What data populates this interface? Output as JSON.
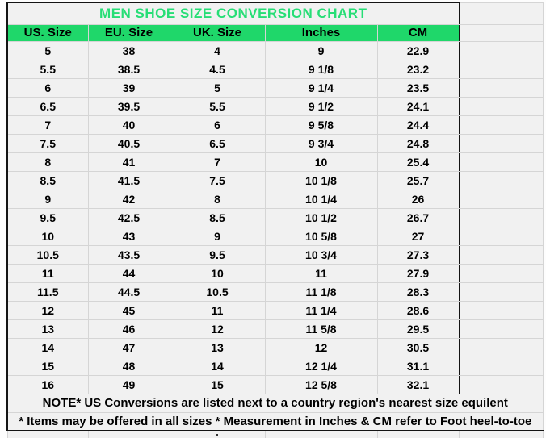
{
  "title": "MEN SHOE SIZE CONVERSION CHART",
  "colors": {
    "header_green": "#1fd76a",
    "title_green": "#27de76",
    "cell_background": "#f1f1f1",
    "gridline": "#d5d5d5",
    "border_dark": "#141414"
  },
  "chart_data": {
    "type": "table",
    "title": "MEN SHOE SIZE CONVERSION CHART",
    "columns": [
      "US. Size",
      "EU. Size",
      "UK. Size",
      "Inches",
      "CM"
    ],
    "rows": [
      [
        "5",
        "38",
        "4",
        "9",
        "22.9"
      ],
      [
        "5.5",
        "38.5",
        "4.5",
        "9 1/8",
        "23.2"
      ],
      [
        "6",
        "39",
        "5",
        "9 1/4",
        "23.5"
      ],
      [
        "6.5",
        "39.5",
        "5.5",
        "9 1/2",
        "24.1"
      ],
      [
        "7",
        "40",
        "6",
        "9 5/8",
        "24.4"
      ],
      [
        "7.5",
        "40.5",
        "6.5",
        "9 3/4",
        "24.8"
      ],
      [
        "8",
        "41",
        "7",
        "10",
        "25.4"
      ],
      [
        "8.5",
        "41.5",
        "7.5",
        "10 1/8",
        "25.7"
      ],
      [
        "9",
        "42",
        "8",
        "10 1/4",
        "26"
      ],
      [
        "9.5",
        "42.5",
        "8.5",
        "10 1/2",
        "26.7"
      ],
      [
        "10",
        "43",
        "9",
        "10 5/8",
        "27"
      ],
      [
        "10.5",
        "43.5",
        "9.5",
        "10 3/4",
        "27.3"
      ],
      [
        "11",
        "44",
        "10",
        "11",
        "27.9"
      ],
      [
        "11.5",
        "44.5",
        "10.5",
        "11 1/8",
        "28.3"
      ],
      [
        "12",
        "45",
        "11",
        "11 1/4",
        "28.6"
      ],
      [
        "13",
        "46",
        "12",
        "11 5/8",
        "29.5"
      ],
      [
        "14",
        "47",
        "13",
        "12",
        "30.5"
      ],
      [
        "15",
        "48",
        "14",
        "12 1/4",
        "31.1"
      ],
      [
        "16",
        "49",
        "15",
        "12 5/8",
        "32.1"
      ]
    ],
    "notes": [
      "NOTE* US Conversions are listed next to a country region's nearest size equilent",
      "* Items may be offered in all sizes * Measurement in Inches & CM refer to Foot heel-to-toe"
    ],
    "layout": {
      "grid": "on",
      "extra_empty_column": true,
      "clipped_bottom_row": true
    }
  }
}
